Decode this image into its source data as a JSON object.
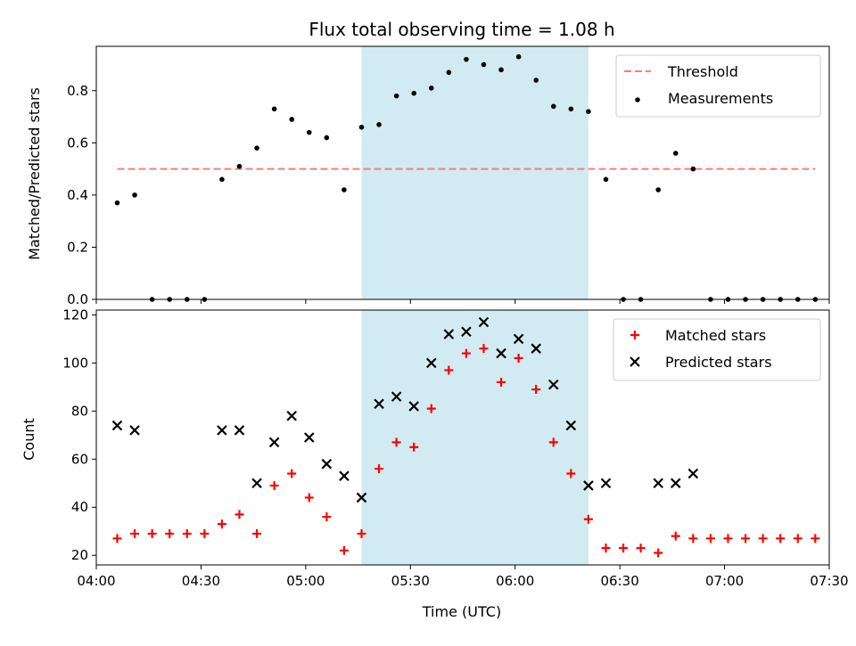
{
  "figure_title": "Flux total observing time = 1.08 h",
  "xlabel": "Time (UTC)",
  "x_ticks": [
    "04:00",
    "04:30",
    "05:00",
    "05:30",
    "06:00",
    "06:30",
    "07:00",
    "07:30"
  ],
  "colors": {
    "threshold": "#f08080",
    "measurement": "#000000",
    "matched": "#ff0000",
    "predicted": "#000000",
    "span": "#add8e6"
  },
  "chart_data": [
    {
      "type": "scatter",
      "ylabel": "Matched/Predicted stars",
      "xlim": [
        "04:00",
        "07:30"
      ],
      "ylim": [
        0,
        0.97
      ],
      "y_ticks": [
        "0.0",
        "0.2",
        "0.4",
        "0.6",
        "0.8"
      ],
      "legend_position": "top-right",
      "highlight_span": [
        "05:16",
        "06:21"
      ],
      "threshold": {
        "name": "Threshold",
        "value": 0.5,
        "from": "04:06",
        "to": "07:26"
      },
      "series": [
        {
          "name": "Measurements",
          "points": [
            [
              "04:06",
              0.37
            ],
            [
              "04:11",
              0.4
            ],
            [
              "04:16",
              0.0
            ],
            [
              "04:21",
              0.0
            ],
            [
              "04:26",
              0.0
            ],
            [
              "04:31",
              0.0
            ],
            [
              "04:36",
              0.46
            ],
            [
              "04:41",
              0.51
            ],
            [
              "04:46",
              0.58
            ],
            [
              "04:51",
              0.73
            ],
            [
              "04:56",
              0.69
            ],
            [
              "05:01",
              0.64
            ],
            [
              "05:06",
              0.62
            ],
            [
              "05:11",
              0.42
            ],
            [
              "05:16",
              0.66
            ],
            [
              "05:21",
              0.67
            ],
            [
              "05:26",
              0.78
            ],
            [
              "05:31",
              0.79
            ],
            [
              "05:36",
              0.81
            ],
            [
              "05:41",
              0.87
            ],
            [
              "05:46",
              0.92
            ],
            [
              "05:51",
              0.9
            ],
            [
              "05:56",
              0.88
            ],
            [
              "06:01",
              0.93
            ],
            [
              "06:06",
              0.84
            ],
            [
              "06:11",
              0.74
            ],
            [
              "06:16",
              0.73
            ],
            [
              "06:21",
              0.72
            ],
            [
              "06:26",
              0.46
            ],
            [
              "06:31",
              0.0
            ],
            [
              "06:36",
              0.0
            ],
            [
              "06:41",
              0.42
            ],
            [
              "06:46",
              0.56
            ],
            [
              "06:51",
              0.5
            ],
            [
              "06:56",
              0.0
            ],
            [
              "07:01",
              0.0
            ],
            [
              "07:06",
              0.0
            ],
            [
              "07:11",
              0.0
            ],
            [
              "07:16",
              0.0
            ],
            [
              "07:21",
              0.0
            ],
            [
              "07:26",
              0.0
            ]
          ]
        }
      ]
    },
    {
      "type": "scatter",
      "ylabel": "Count",
      "xlim": [
        "04:00",
        "07:30"
      ],
      "ylim": [
        16,
        122
      ],
      "y_ticks": [
        "20",
        "40",
        "60",
        "80",
        "100",
        "120"
      ],
      "legend_position": "top-right",
      "highlight_span": [
        "05:16",
        "06:21"
      ],
      "series": [
        {
          "name": "Matched stars",
          "marker": "plus",
          "points": [
            [
              "04:06",
              27
            ],
            [
              "04:11",
              29
            ],
            [
              "04:16",
              29
            ],
            [
              "04:21",
              29
            ],
            [
              "04:26",
              29
            ],
            [
              "04:31",
              29
            ],
            [
              "04:36",
              33
            ],
            [
              "04:41",
              37
            ],
            [
              "04:46",
              29
            ],
            [
              "04:51",
              49
            ],
            [
              "04:56",
              54
            ],
            [
              "05:01",
              44
            ],
            [
              "05:06",
              36
            ],
            [
              "05:11",
              22
            ],
            [
              "05:16",
              29
            ],
            [
              "05:21",
              56
            ],
            [
              "05:26",
              67
            ],
            [
              "05:31",
              65
            ],
            [
              "05:36",
              81
            ],
            [
              "05:41",
              97
            ],
            [
              "05:46",
              104
            ],
            [
              "05:51",
              106
            ],
            [
              "05:56",
              92
            ],
            [
              "06:01",
              102
            ],
            [
              "06:06",
              89
            ],
            [
              "06:11",
              67
            ],
            [
              "06:16",
              54
            ],
            [
              "06:21",
              35
            ],
            [
              "06:26",
              23
            ],
            [
              "06:31",
              23
            ],
            [
              "06:36",
              23
            ],
            [
              "06:41",
              21
            ],
            [
              "06:46",
              28
            ],
            [
              "06:51",
              27
            ],
            [
              "06:56",
              27
            ],
            [
              "07:01",
              27
            ],
            [
              "07:06",
              27
            ],
            [
              "07:11",
              27
            ],
            [
              "07:16",
              27
            ],
            [
              "07:21",
              27
            ],
            [
              "07:26",
              27
            ]
          ]
        },
        {
          "name": "Predicted stars",
          "marker": "x",
          "points": [
            [
              "04:06",
              74
            ],
            [
              "04:11",
              72
            ],
            [
              "04:36",
              72
            ],
            [
              "04:41",
              72
            ],
            [
              "04:46",
              50
            ],
            [
              "04:51",
              67
            ],
            [
              "04:56",
              78
            ],
            [
              "05:01",
              69
            ],
            [
              "05:06",
              58
            ],
            [
              "05:11",
              53
            ],
            [
              "05:16",
              44
            ],
            [
              "05:21",
              83
            ],
            [
              "05:26",
              86
            ],
            [
              "05:31",
              82
            ],
            [
              "05:36",
              100
            ],
            [
              "05:41",
              112
            ],
            [
              "05:46",
              113
            ],
            [
              "05:51",
              117
            ],
            [
              "05:56",
              104
            ],
            [
              "06:01",
              110
            ],
            [
              "06:06",
              106
            ],
            [
              "06:11",
              91
            ],
            [
              "06:16",
              74
            ],
            [
              "06:21",
              49
            ],
            [
              "06:26",
              50
            ],
            [
              "06:41",
              50
            ],
            [
              "06:46",
              50
            ],
            [
              "06:51",
              54
            ]
          ]
        }
      ]
    }
  ]
}
